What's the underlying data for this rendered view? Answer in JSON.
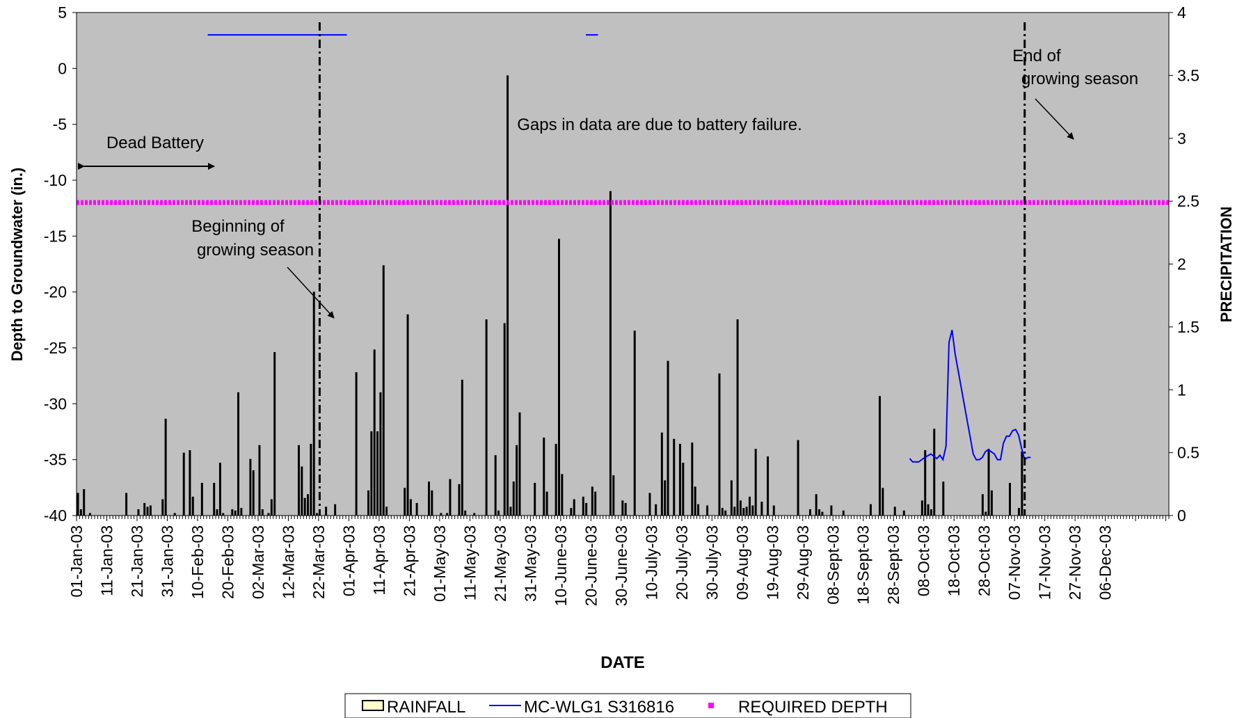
{
  "chart_data": {
    "type": "bar",
    "xlabel": "DATE",
    "ylabel_left": "Depth to Groundwater (in.)",
    "ylabel_right": "PRECIPITATION",
    "ylim_left": [
      -40,
      5
    ],
    "ylim_right": [
      0,
      4
    ],
    "yticks_left": [
      "5",
      "0",
      "-5",
      "-10",
      "-15",
      "-20",
      "-25",
      "-30",
      "-35",
      "-40"
    ],
    "yticks_right": [
      "4",
      "3.5",
      "3",
      "2.5",
      "2",
      "1.5",
      "1",
      "0.5",
      "0"
    ],
    "x_start": "01-Jan-03",
    "x_tick_labels": [
      "01-Jan-03",
      "11-Jan-03",
      "21-Jan-03",
      "31-Jan-03",
      "10-Feb-03",
      "20-Feb-03",
      "02-Mar-03",
      "12-Mar-03",
      "22-Mar-03",
      "01-Apr-03",
      "11-Apr-03",
      "21-Apr-03",
      "01-May-03",
      "11-May-03",
      "21-May-03",
      "31-May-03",
      "10-June-03",
      "20-June-03",
      "30-June-03",
      "10-July-03",
      "20-July-03",
      "30-July-03",
      "09-Aug-03",
      "19-Aug-03",
      "29-Aug-03",
      "08-Sept-03",
      "18-Sept-03",
      "28-Sept-03",
      "08-Oct-03",
      "18-Oct-03",
      "28-Oct-03",
      "07-Nov-03",
      "17-Nov-03",
      "27-Nov-03",
      "06-Dec-03"
    ],
    "rainfall": {
      "name": "RAINFALL",
      "axis": "right",
      "color": "#000000",
      "data": [
        [
          "01-Jan-03",
          0.18
        ],
        [
          "02-Jan-03",
          0.05
        ],
        [
          "03-Jan-03",
          0.21
        ],
        [
          "05-Jan-03",
          0.02
        ],
        [
          "17-Jan-03",
          0.18
        ],
        [
          "21-Jan-03",
          0.05
        ],
        [
          "23-Jan-03",
          0.1
        ],
        [
          "24-Jan-03",
          0.07
        ],
        [
          "25-Jan-03",
          0.08
        ],
        [
          "29-Jan-03",
          0.13
        ],
        [
          "30-Jan-03",
          0.77
        ],
        [
          "02-Feb-03",
          0.02
        ],
        [
          "05-Feb-03",
          0.5
        ],
        [
          "07-Feb-03",
          0.52
        ],
        [
          "08-Feb-03",
          0.15
        ],
        [
          "11-Feb-03",
          0.26
        ],
        [
          "15-Feb-03",
          0.26
        ],
        [
          "16-Feb-03",
          0.05
        ],
        [
          "17-Feb-03",
          0.42
        ],
        [
          "18-Feb-03",
          0.02
        ],
        [
          "21-Feb-03",
          0.05
        ],
        [
          "22-Feb-03",
          0.04
        ],
        [
          "23-Feb-03",
          0.98
        ],
        [
          "24-Feb-03",
          0.06
        ],
        [
          "27-Feb-03",
          0.45
        ],
        [
          "28-Feb-03",
          0.36
        ],
        [
          "02-Mar-03",
          0.56
        ],
        [
          "03-Mar-03",
          0.05
        ],
        [
          "05-Mar-03",
          0.02
        ],
        [
          "06-Mar-03",
          0.13
        ],
        [
          "07-Mar-03",
          1.3
        ],
        [
          "15-Mar-03",
          0.56
        ],
        [
          "16-Mar-03",
          0.39
        ],
        [
          "17-Mar-03",
          0.14
        ],
        [
          "18-Mar-03",
          0.17
        ],
        [
          "19-Mar-03",
          0.57
        ],
        [
          "20-Mar-03",
          1.78
        ],
        [
          "21-Mar-03",
          0.02
        ],
        [
          "24-Mar-03",
          0.07
        ],
        [
          "27-Mar-03",
          0.09
        ],
        [
          "03-Apr-03",
          1.14
        ],
        [
          "07-Apr-03",
          0.2
        ],
        [
          "08-Apr-03",
          0.67
        ],
        [
          "09-Apr-03",
          1.32
        ],
        [
          "10-Apr-03",
          0.67
        ],
        [
          "11-Apr-03",
          0.98
        ],
        [
          "12-Apr-03",
          1.99
        ],
        [
          "13-Apr-03",
          0.07
        ],
        [
          "19-Apr-03",
          0.22
        ],
        [
          "20-Apr-03",
          1.6
        ],
        [
          "21-Apr-03",
          0.13
        ],
        [
          "23-Apr-03",
          0.1
        ],
        [
          "27-Apr-03",
          0.27
        ],
        [
          "28-Apr-03",
          0.2
        ],
        [
          "01-May-03",
          0.02
        ],
        [
          "03-May-03",
          0.02
        ],
        [
          "04-May-03",
          0.29
        ],
        [
          "07-May-03",
          0.25
        ],
        [
          "08-May-03",
          1.08
        ],
        [
          "09-May-03",
          0.04
        ],
        [
          "12-May-03",
          0.02
        ],
        [
          "16-May-03",
          1.56
        ],
        [
          "19-May-03",
          0.48
        ],
        [
          "20-May-03",
          0.04
        ],
        [
          "22-May-03",
          1.53
        ],
        [
          "23-May-03",
          3.5
        ],
        [
          "24-May-03",
          0.07
        ],
        [
          "25-May-03",
          0.27
        ],
        [
          "26-May-03",
          0.56
        ],
        [
          "27-May-03",
          0.82
        ],
        [
          "01-June-03",
          0.26
        ],
        [
          "04-June-03",
          0.62
        ],
        [
          "05-June-03",
          0.19
        ],
        [
          "08-June-03",
          0.57
        ],
        [
          "09-June-03",
          2.2
        ],
        [
          "10-June-03",
          0.33
        ],
        [
          "13-June-03",
          0.06
        ],
        [
          "14-June-03",
          0.13
        ],
        [
          "17-June-03",
          0.15
        ],
        [
          "18-June-03",
          0.1
        ],
        [
          "20-June-03",
          0.23
        ],
        [
          "21-June-03",
          0.19
        ],
        [
          "26-June-03",
          2.58
        ],
        [
          "27-June-03",
          0.32
        ],
        [
          "30-June-03",
          0.12
        ],
        [
          "01-July-03",
          0.1
        ],
        [
          "04-July-03",
          1.47
        ],
        [
          "09-July-03",
          0.18
        ],
        [
          "11-July-03",
          0.09
        ],
        [
          "13-July-03",
          0.66
        ],
        [
          "14-July-03",
          0.28
        ],
        [
          "15-July-03",
          1.23
        ],
        [
          "17-July-03",
          0.61
        ],
        [
          "19-July-03",
          0.57
        ],
        [
          "20-July-03",
          0.42
        ],
        [
          "23-July-03",
          0.58
        ],
        [
          "24-July-03",
          0.23
        ],
        [
          "25-July-03",
          0.09
        ],
        [
          "28-July-03",
          0.08
        ],
        [
          "01-Aug-03",
          1.13
        ],
        [
          "02-Aug-03",
          0.06
        ],
        [
          "03-Aug-03",
          0.04
        ],
        [
          "05-Aug-03",
          0.28
        ],
        [
          "06-Aug-03",
          0.07
        ],
        [
          "07-Aug-03",
          1.56
        ],
        [
          "08-Aug-03",
          0.12
        ],
        [
          "09-Aug-03",
          0.06
        ],
        [
          "10-Aug-03",
          0.07
        ],
        [
          "11-Aug-03",
          0.15
        ],
        [
          "12-Aug-03",
          0.08
        ],
        [
          "13-Aug-03",
          0.53
        ],
        [
          "15-Aug-03",
          0.11
        ],
        [
          "17-Aug-03",
          0.47
        ],
        [
          "19-Aug-03",
          0.08
        ],
        [
          "27-Aug-03",
          0.6
        ],
        [
          "31-Aug-03",
          0.05
        ],
        [
          "02-Sept-03",
          0.17
        ],
        [
          "03-Sept-03",
          0.05
        ],
        [
          "04-Sept-03",
          0.03
        ],
        [
          "07-Sept-03",
          0.08
        ],
        [
          "11-Sept-03",
          0.04
        ],
        [
          "20-Sept-03",
          0.09
        ],
        [
          "23-Sept-03",
          0.95
        ],
        [
          "24-Sept-03",
          0.22
        ],
        [
          "28-Sept-03",
          0.07
        ],
        [
          "01-Oct-03",
          0.04
        ],
        [
          "07-Oct-03",
          0.12
        ],
        [
          "08-Oct-03",
          0.52
        ],
        [
          "09-Oct-03",
          0.09
        ],
        [
          "10-Oct-03",
          0.05
        ],
        [
          "11-Oct-03",
          0.69
        ],
        [
          "14-Oct-03",
          0.27
        ],
        [
          "27-Oct-03",
          0.17
        ],
        [
          "28-Oct-03",
          0.03
        ],
        [
          "29-Oct-03",
          0.53
        ],
        [
          "30-Oct-03",
          0.2
        ],
        [
          "05-Nov-03",
          0.26
        ],
        [
          "08-Nov-03",
          0.06
        ],
        [
          "09-Nov-03",
          0.51
        ]
      ]
    },
    "series": [
      {
        "name": "MC-WLG1 S316816",
        "axis": "left",
        "color": "#0000ff",
        "segments": [
          [
            [
              "13-Feb-03",
              3
            ],
            [
              "31-Mar-03",
              3
            ]
          ],
          [
            [
              "18-June-03",
              3
            ],
            [
              "22-June-03",
              3
            ]
          ],
          [
            [
              "03-Oct-03",
              -34.9
            ],
            [
              "04-Oct-03",
              -35.2
            ],
            [
              "06-Oct-03",
              -35.2
            ],
            [
              "08-Oct-03",
              -34.8
            ],
            [
              "10-Oct-03",
              -34.5
            ],
            [
              "12-Oct-03",
              -34.9
            ],
            [
              "13-Oct-03",
              -34.6
            ],
            [
              "14-Oct-03",
              -35.0
            ],
            [
              "15-Oct-03",
              -33.8
            ],
            [
              "16-Oct-03",
              -24.5
            ],
            [
              "17-Oct-03",
              -23.4
            ],
            [
              "18-Oct-03",
              -25.5
            ],
            [
              "20-Oct-03",
              -28.5
            ],
            [
              "22-Oct-03",
              -31.5
            ],
            [
              "23-Oct-03",
              -33.0
            ],
            [
              "24-Oct-03",
              -34.5
            ],
            [
              "25-Oct-03",
              -35.0
            ],
            [
              "26-Oct-03",
              -35.0
            ],
            [
              "27-Oct-03",
              -34.8
            ],
            [
              "28-Oct-03",
              -34.3
            ],
            [
              "29-Oct-03",
              -34.1
            ],
            [
              "30-Oct-03",
              -34.3
            ],
            [
              "31-Oct-03",
              -34.5
            ],
            [
              "01-Nov-03",
              -35.0
            ],
            [
              "02-Nov-03",
              -35.0
            ],
            [
              "03-Nov-03",
              -33.5
            ],
            [
              "04-Nov-03",
              -32.9
            ],
            [
              "05-Nov-03",
              -32.9
            ],
            [
              "06-Nov-03",
              -32.4
            ],
            [
              "07-Nov-03",
              -32.3
            ],
            [
              "08-Nov-03",
              -32.8
            ],
            [
              "09-Nov-03",
              -34.0
            ],
            [
              "10-Nov-03",
              -35.0
            ],
            [
              "11-Nov-03",
              -34.8
            ],
            [
              "12-Nov-03",
              -34.8
            ]
          ]
        ]
      },
      {
        "name": "REQUIRED DEPTH",
        "axis": "left",
        "color": "#ff00ff",
        "value": -12
      }
    ],
    "vertical_markers": [
      "22-Mar-03",
      "10-Nov-03"
    ],
    "annotations": {
      "dead_battery": "Dead Battery",
      "dead_battery_range": [
        "01-Jan-03",
        "12-Feb-03"
      ],
      "gaps_note": "Gaps in data are due to battery failure.",
      "begin_line1": "Beginning of",
      "begin_line2": "growing season",
      "end_line1": "End of",
      "end_line2": "growing season"
    },
    "legend": {
      "position": "bottom-center",
      "items": [
        "RAINFALL",
        "MC-WLG1 S316816",
        "REQUIRED DEPTH"
      ]
    },
    "colors": {
      "plot_background": "#c0c0c0",
      "rainfall_bar": "#000000",
      "groundwater_line": "#0000ff",
      "required_depth": "#ff00ff",
      "legend_rainfall_swatch": "#ffffcc"
    }
  }
}
